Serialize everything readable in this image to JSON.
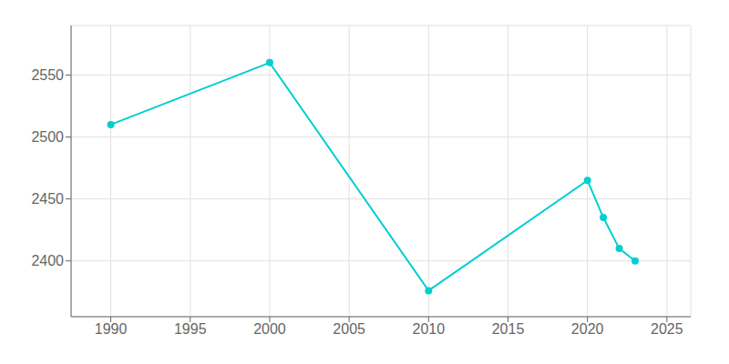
{
  "chart_data": {
    "type": "line",
    "x": [
      1990,
      2000,
      2010,
      2020,
      2021,
      2022,
      2023
    ],
    "values": [
      2510,
      2560,
      2376,
      2465,
      2435,
      2410,
      2400
    ],
    "color": "#00CED1",
    "marker": "circle",
    "xlim": [
      1987.5,
      2026.5
    ],
    "ylim": [
      2355,
      2590
    ],
    "xticks": [
      1990,
      1995,
      2000,
      2005,
      2010,
      2015,
      2020,
      2025
    ],
    "yticks": [
      2400,
      2450,
      2500,
      2550
    ],
    "grid": true
  }
}
